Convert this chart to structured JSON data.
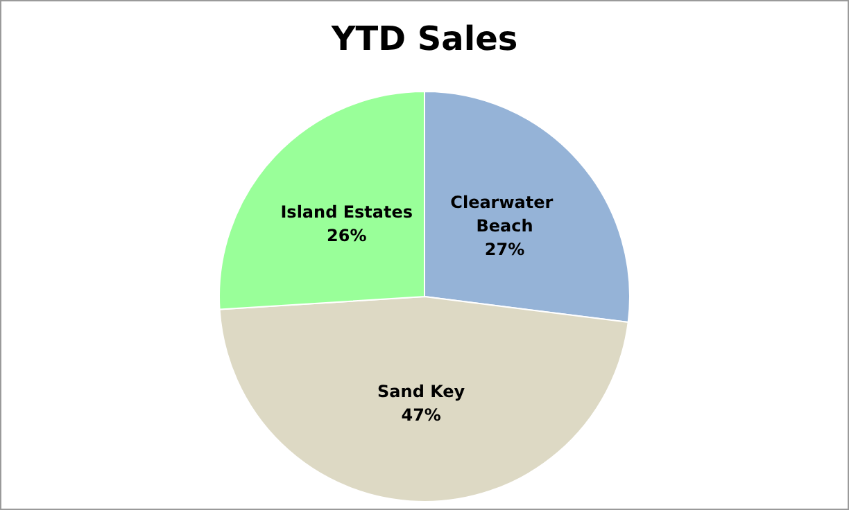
{
  "chart_data": {
    "type": "pie",
    "title": "YTD Sales",
    "categories": [
      "Clearwater Beach",
      "Sand Key",
      "Island Estates"
    ],
    "values": [
      27,
      47,
      26
    ],
    "colors": [
      "#95b3d7",
      "#ddd9c4",
      "#99ff99"
    ],
    "value_labels": [
      "27%",
      "47%",
      "26%"
    ],
    "legend": false
  }
}
